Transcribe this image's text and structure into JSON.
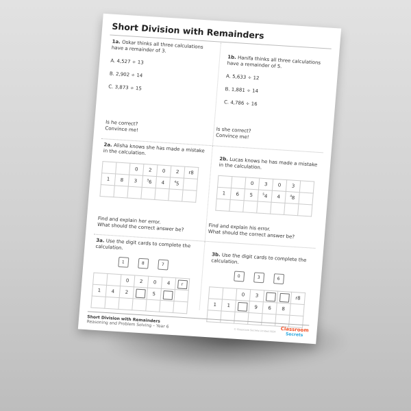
{
  "title": "Short Division with Remainders",
  "q1a": {
    "num": "1a.",
    "text": "Oskar thinks all three calculations have a remainder of 3.",
    "options": [
      "A. 4,527 ÷ 13",
      "B. 2,902 ÷ 14",
      "C. 3,873 ÷ 15"
    ],
    "prompt1": "Is he correct?",
    "prompt2": "Convince me!"
  },
  "q1b": {
    "num": "1b.",
    "text": "Hanifa thinks all three calculations have a remainder of 5.",
    "options": [
      "A. 5,633 ÷ 12",
      "B. 1,881 ÷ 14",
      "C. 4,786 ÷ 16"
    ],
    "prompt1": "Is she correct?",
    "prompt2": "Convince me!"
  },
  "q2a": {
    "num": "2a.",
    "text": "Alisha knows she has made a mistake in the calculation.",
    "grid": [
      [
        {
          "t": ""
        },
        {
          "t": ""
        },
        {
          "t": "0"
        },
        {
          "t": "2"
        },
        {
          "t": "0"
        },
        {
          "t": "2"
        },
        {
          "t": "r8"
        }
      ],
      [
        {
          "t": "1"
        },
        {
          "t": "8"
        },
        {
          "t": "3"
        },
        {
          "sup": "3",
          "t": "6"
        },
        {
          "t": "4"
        },
        {
          "sup": "4",
          "t": "5"
        },
        {
          "t": ""
        }
      ],
      [
        {
          "t": ""
        },
        {
          "t": ""
        },
        {
          "t": ""
        },
        {
          "t": ""
        },
        {
          "t": ""
        },
        {
          "t": ""
        },
        {
          "t": ""
        }
      ]
    ],
    "prompt1": "Find and explain her error.",
    "prompt2": "What should the correct answer be?"
  },
  "q2b": {
    "num": "2b.",
    "text": "Lucas knows he has made a mistake in the calculation.",
    "grid": [
      [
        {
          "t": ""
        },
        {
          "t": ""
        },
        {
          "t": "0"
        },
        {
          "t": "3"
        },
        {
          "t": "0"
        },
        {
          "t": "3"
        },
        {
          "t": ""
        }
      ],
      [
        {
          "t": "1"
        },
        {
          "t": "6"
        },
        {
          "t": "5"
        },
        {
          "sup": "5",
          "t": "4"
        },
        {
          "t": "4"
        },
        {
          "sup": "4",
          "t": "8"
        },
        {
          "t": ""
        }
      ],
      [
        {
          "t": ""
        },
        {
          "t": ""
        },
        {
          "t": ""
        },
        {
          "t": ""
        },
        {
          "t": ""
        },
        {
          "t": ""
        },
        {
          "t": ""
        }
      ]
    ],
    "prompt1": "Find and explain his error.",
    "prompt2": "What should the correct answer be?"
  },
  "q3a": {
    "num": "3a.",
    "text": "Use the digit cards to complete the calculation.",
    "cards": [
      "1",
      "8",
      "7"
    ],
    "grid": [
      [
        {
          "t": ""
        },
        {
          "t": ""
        },
        {
          "t": "0"
        },
        {
          "t": "2"
        },
        {
          "t": "0"
        },
        {
          "t": "4"
        },
        {
          "box": true,
          "t": "r"
        }
      ],
      [
        {
          "t": "1"
        },
        {
          "t": "4"
        },
        {
          "t": "2"
        },
        {
          "box": true,
          "t": ""
        },
        {
          "t": "5"
        },
        {
          "box": true,
          "t": ""
        },
        {
          "t": ""
        }
      ],
      [
        {
          "t": ""
        },
        {
          "t": ""
        },
        {
          "t": ""
        },
        {
          "t": ""
        },
        {
          "t": ""
        },
        {
          "t": ""
        },
        {
          "t": ""
        }
      ]
    ]
  },
  "q3b": {
    "num": "3b.",
    "text": "Use the digit cards to complete the calculation.",
    "cards": [
      "0",
      "3",
      "6"
    ],
    "grid": [
      [
        {
          "t": ""
        },
        {
          "t": ""
        },
        {
          "t": "0"
        },
        {
          "t": "3"
        },
        {
          "box": true,
          "t": ""
        },
        {
          "box": true,
          "t": ""
        },
        {
          "t": "r8"
        }
      ],
      [
        {
          "t": "1"
        },
        {
          "t": "1"
        },
        {
          "box": true,
          "t": ""
        },
        {
          "t": "9"
        },
        {
          "t": "6"
        },
        {
          "t": "8"
        },
        {
          "t": ""
        }
      ],
      [
        {
          "t": ""
        },
        {
          "t": ""
        },
        {
          "t": ""
        },
        {
          "t": ""
        },
        {
          "t": ""
        },
        {
          "t": ""
        },
        {
          "t": ""
        }
      ]
    ]
  },
  "footer": {
    "title": "Short Division with Remainders",
    "subtitle": "Reasoning and Problem Solving – Year 6",
    "copyright": "© Classroom Secrets Limited 2024",
    "logo_line1": "Classroom",
    "logo_line2": "Secrets"
  },
  "colors": {
    "logo_orange": "#f04e23",
    "logo_blue": "#2aa7df"
  }
}
